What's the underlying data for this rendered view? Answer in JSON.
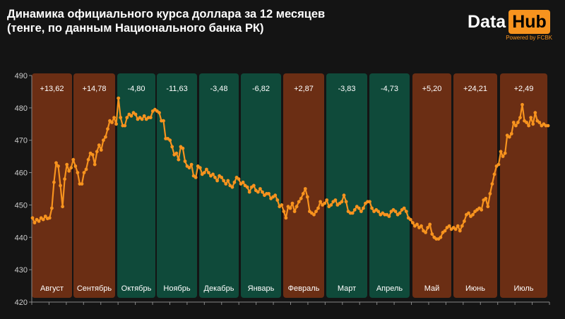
{
  "title": {
    "line1": "Динамика официального курса доллара за 12 месяцев",
    "line2": "(тенге, по данным Национального банка РК)"
  },
  "logo": {
    "data": "Data",
    "hub": "Hub",
    "powered": "Powered by FCBK"
  },
  "colors": {
    "background": "#141414",
    "up_band": "#6b2e14",
    "down_band": "#0f4a3a",
    "line": "#f7931e",
    "text": "#ffffff",
    "axis_text": "#cccccc",
    "brand": "#f7931e"
  },
  "chart_data": {
    "type": "line",
    "title": "Динамика официального курса доллара за 12 месяцев",
    "subtitle": "(тенге, по данным Национального банка РК)",
    "ylim": [
      420,
      490
    ],
    "yticks": [
      "420",
      "430",
      "440",
      "450",
      "460",
      "470",
      "480",
      "490"
    ],
    "grid": false,
    "months": [
      {
        "label": "Август",
        "change": "+13,62",
        "trend": "up"
      },
      {
        "label": "Сентябрь",
        "change": "+14,78",
        "trend": "up"
      },
      {
        "label": "Октябрь",
        "change": "-4,80",
        "trend": "down"
      },
      {
        "label": "Ноябрь",
        "change": "-11,63",
        "trend": "down"
      },
      {
        "label": "Декабрь",
        "change": "-3,48",
        "trend": "down"
      },
      {
        "label": "Январь",
        "change": "-6,82",
        "trend": "down"
      },
      {
        "label": "Февраль",
        "change": "+2,87",
        "trend": "up"
      },
      {
        "label": "Март",
        "change": "-3,83",
        "trend": "down"
      },
      {
        "label": "Апрель",
        "change": "-4,73",
        "trend": "down"
      },
      {
        "label": "Май",
        "change": "+5,20",
        "trend": "up"
      },
      {
        "label": "Июнь",
        "change": "+24,21",
        "trend": "up"
      },
      {
        "label": "Июль",
        "change": "+2,49",
        "trend": "up"
      }
    ],
    "series": [
      {
        "values": [
          446.0,
          444.5,
          445.5,
          445.0,
          446.0,
          445.5,
          446.5,
          445.8,
          446.0,
          449.0,
          457.0,
          463.0,
          462.0,
          456.0,
          449.5,
          458.0,
          462.5,
          460.5,
          461.5,
          464.0,
          462.0,
          460.0,
          456.5,
          456.5,
          460.0,
          461.0,
          464.0,
          466.0,
          465.5,
          462.5,
          466.5,
          468.5,
          467.0,
          470.0,
          471.0,
          473.5,
          476.0,
          475.5,
          477.0,
          475.0,
          483.0,
          477.0,
          474.5,
          474.5,
          477.0,
          478.0,
          477.5,
          478.5,
          478.0,
          476.5,
          477.0,
          476.5,
          477.5,
          476.5,
          477.0,
          477.0,
          479.0,
          479.5,
          479.0,
          478.5,
          476.0,
          476.0,
          470.5,
          470.5,
          470.0,
          468.0,
          465.5,
          466.0,
          464.0,
          468.0,
          467.5,
          463.5,
          462.0,
          461.5,
          462.5,
          459.0,
          458.5,
          462.0,
          461.5,
          459.5,
          460.0,
          461.0,
          460.0,
          459.0,
          459.5,
          458.5,
          457.5,
          459.0,
          458.5,
          457.5,
          456.5,
          457.5,
          456.0,
          455.5,
          457.0,
          458.5,
          458.0,
          456.5,
          457.0,
          456.0,
          455.5,
          454.0,
          455.5,
          456.0,
          454.5,
          454.0,
          455.0,
          454.0,
          453.0,
          453.5,
          453.5,
          452.0,
          452.5,
          453.0,
          451.5,
          449.5,
          450.0,
          448.0,
          446.0,
          449.5,
          449.0,
          450.5,
          448.0,
          449.5,
          451.0,
          452.0,
          453.5,
          455.0,
          452.5,
          448.0,
          447.5,
          447.0,
          448.0,
          449.0,
          451.0,
          450.0,
          450.5,
          451.5,
          449.5,
          450.0,
          451.0,
          451.5,
          450.0,
          450.5,
          451.0,
          453.0,
          451.0,
          448.0,
          447.5,
          447.5,
          448.5,
          449.5,
          449.0,
          448.0,
          449.0,
          450.5,
          451.0,
          451.0,
          449.0,
          448.0,
          448.5,
          448.0,
          447.0,
          447.5,
          447.0,
          447.0,
          446.5,
          448.0,
          448.5,
          448.0,
          447.0,
          447.5,
          448.5,
          449.0,
          448.0,
          446.0,
          445.5,
          444.5,
          443.5,
          444.0,
          443.0,
          443.5,
          442.0,
          441.5,
          443.0,
          444.0,
          441.0,
          440.0,
          439.5,
          439.5,
          440.0,
          441.5,
          442.0,
          443.0,
          443.5,
          442.5,
          443.0,
          442.5,
          443.5,
          442.0,
          443.5,
          445.0,
          447.0,
          447.5,
          446.5,
          447.0,
          448.0,
          448.5,
          449.0,
          448.5,
          451.5,
          452.0,
          449.5,
          453.5,
          456.5,
          459.5,
          462.0,
          462.5,
          466.5,
          465.0,
          466.0,
          471.5,
          471.0,
          472.0,
          475.5,
          474.5,
          475.5,
          477.0,
          481.0,
          476.0,
          475.5,
          474.5,
          477.0,
          475.0,
          478.5,
          476.0,
          475.5,
          474.5,
          475.0,
          474.5,
          474.5
        ]
      }
    ]
  }
}
